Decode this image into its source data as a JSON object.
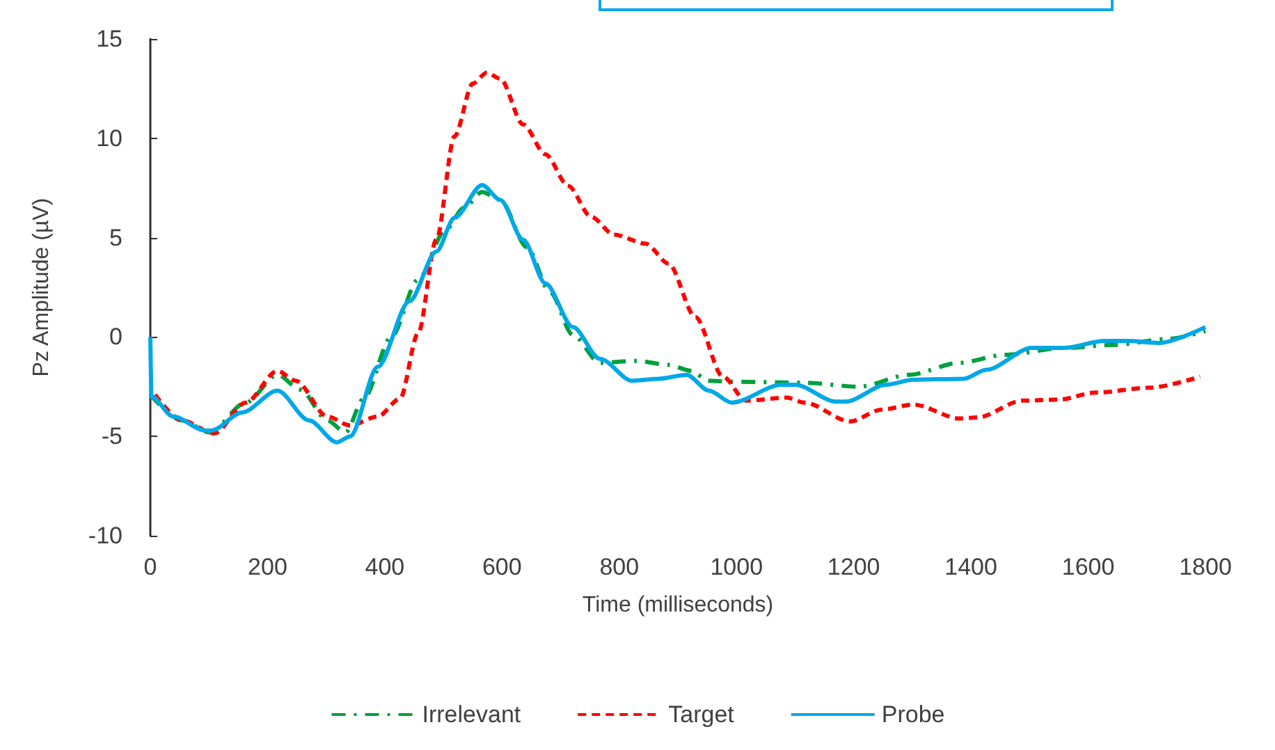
{
  "chart_data": {
    "type": "line",
    "xlabel": "Time (milliseconds)",
    "ylabel": "Pz Amplitude (µV)",
    "xlim": [
      0,
      1800
    ],
    "xticks": [
      0,
      200,
      400,
      600,
      800,
      1000,
      1200,
      1400,
      1600,
      1800
    ],
    "ylim": [
      -10,
      15
    ],
    "yticks": [
      -10,
      -5,
      0,
      5,
      10,
      15
    ],
    "grid": false,
    "legend": "bottom",
    "marker": "none",
    "series": [
      {
        "name": "Irrelevant",
        "color": "#00a03c",
        "line_style": "dashdot",
        "x": [
          0,
          54,
          101,
          163,
          217,
          256,
          302,
          333,
          364,
          411,
          457,
          504,
          535,
          566,
          597,
          643,
          682,
          721,
          767,
          829,
          884,
          922,
          953,
          992,
          1116,
          1209,
          1295,
          1380,
          1457,
          1558,
          1643,
          1736,
          1800
        ],
        "values": [
          -2.9,
          -4.2,
          -4.8,
          -3.3,
          -1.9,
          -2.65,
          -4.2,
          -4.8,
          -3.1,
          0,
          2.9,
          5.4,
          6.5,
          7.3,
          6.9,
          4.5,
          2.25,
          0.1,
          -1.3,
          -1.2,
          -1.4,
          -1.7,
          -2.2,
          -2.25,
          -2.3,
          -2.5,
          -1.9,
          -1.3,
          -0.9,
          -0.55,
          -0.4,
          -0.1,
          0.3
        ]
      },
      {
        "name": "Target",
        "color": "#ff0000",
        "line_style": "dashed",
        "x": [
          8,
          54,
          109,
          163,
          217,
          248,
          302,
          341,
          388,
          426,
          457,
          488,
          519,
          550,
          574,
          597,
          636,
          674,
          713,
          752,
          791,
          845,
          884,
          930,
          977,
          1016,
          1086,
          1116,
          1194,
          1248,
          1302,
          1380,
          1411,
          1488,
          1550,
          1612,
          1705,
          1791
        ],
        "values": [
          -2.9,
          -4.2,
          -4.85,
          -3.3,
          -1.7,
          -2.2,
          -4.0,
          -4.45,
          -4.0,
          -3.1,
          0.2,
          4.9,
          10.1,
          12.75,
          13.3,
          13.0,
          10.7,
          9.2,
          7.6,
          6.05,
          5.15,
          4.7,
          3.7,
          1.0,
          -2.0,
          -3.2,
          -3.05,
          -3.3,
          -4.25,
          -3.65,
          -3.4,
          -4.1,
          -4.05,
          -3.2,
          -3.15,
          -2.8,
          -2.55,
          -2.0
        ]
      },
      {
        "name": "Probe",
        "color": "#00a8e8",
        "line_style": "solid",
        "x": [
          0,
          2,
          39,
          93,
          105,
          156,
          217,
          271,
          318,
          341,
          388,
          442,
          488,
          519,
          566,
          597,
          636,
          674,
          721,
          767,
          822,
          868,
          915,
          953,
          992,
          1077,
          1100,
          1170,
          1186,
          1256,
          1302,
          1388,
          1426,
          1504,
          1558,
          1628,
          1667,
          1721,
          1800
        ],
        "values": [
          0,
          -3.0,
          -4.0,
          -4.7,
          -4.7,
          -3.8,
          -2.7,
          -4.2,
          -5.3,
          -5.0,
          -1.5,
          1.8,
          4.3,
          6.0,
          7.65,
          6.9,
          4.9,
          2.7,
          0.5,
          -1.1,
          -2.2,
          -2.1,
          -1.9,
          -2.7,
          -3.3,
          -2.4,
          -2.4,
          -3.25,
          -3.25,
          -2.4,
          -2.15,
          -2.1,
          -1.65,
          -0.55,
          -0.55,
          -0.2,
          -0.2,
          -0.3,
          0.5
        ]
      }
    ]
  }
}
